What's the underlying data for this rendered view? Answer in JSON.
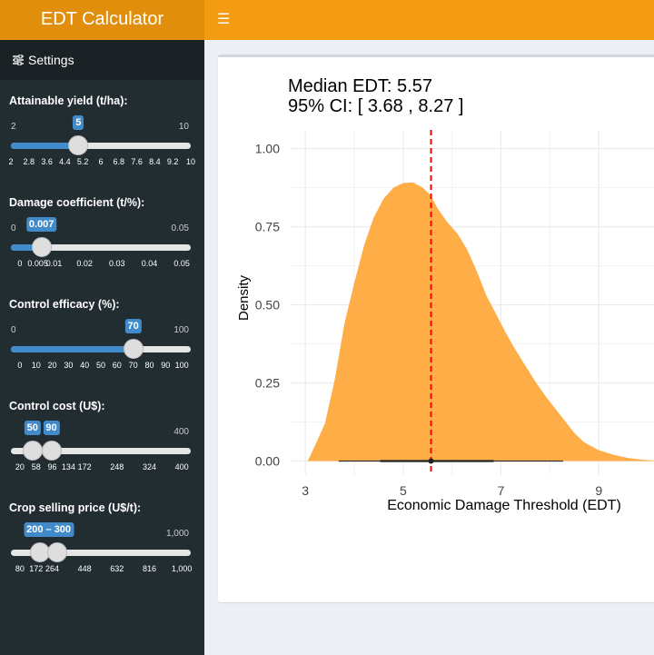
{
  "app": {
    "title": "EDT Calculator",
    "menu_icon": "hamburger-icon"
  },
  "sidebar": {
    "settings_label": "Settings",
    "sliders": [
      {
        "label": "Attainable yield (t/ha):",
        "min": "2",
        "max": "10",
        "value": "5",
        "fill_fraction": 0.375,
        "ticks": [
          "2",
          "2.8",
          "3.6",
          "4.4",
          "5.2",
          "6",
          "6.8",
          "7.6",
          "8.4",
          "9.2",
          "10"
        ]
      },
      {
        "label": "Damage coefficient (t/%):",
        "min": "0",
        "max": "0.05",
        "value": "0.007",
        "fill_fraction": 0.14,
        "ticks": [
          "0",
          "0.005",
          "0.01",
          "0.02",
          "0.03",
          "0.04",
          "0.05"
        ]
      },
      {
        "label": "Control efficacy (%):",
        "min": "0",
        "max": "100",
        "value": "70",
        "fill_fraction": 0.7,
        "ticks": [
          "0",
          "10",
          "20",
          "30",
          "40",
          "50",
          "60",
          "70",
          "80",
          "90",
          "100"
        ]
      },
      {
        "label": "Control cost (U$):",
        "min": "",
        "max": "400",
        "values": [
          "50",
          "90"
        ],
        "range_fractions": [
          0.079,
          0.184
        ],
        "ticks": [
          "20",
          "58",
          "96",
          "134",
          "172",
          "248",
          "324",
          "400"
        ]
      },
      {
        "label": "Crop selling price (U$/t):",
        "min": "",
        "max": "1,000",
        "range_label": "200 – 300",
        "range_fractions": [
          0.13,
          0.239
        ],
        "ticks": [
          "80",
          "172",
          "264",
          "448",
          "632",
          "816",
          "1,000"
        ]
      }
    ]
  },
  "chart_data": {
    "type": "area",
    "title": "Median EDT: 5.57",
    "subtitle": "95% CI: [ 3.68 ,  8.27 ]",
    "xlabel": "Economic Damage Threshold (EDT)",
    "ylabel": "Density",
    "xlim": [
      2.7,
      10.5
    ],
    "ylim": [
      -0.045,
      1.06
    ],
    "x_ticks": [
      3,
      5,
      7,
      9
    ],
    "x_tick_labels": [
      "3",
      "5",
      "7",
      "9"
    ],
    "y_ticks": [
      0,
      0.25,
      0.5,
      0.75,
      1
    ],
    "y_tick_labels": [
      "0.00",
      "0.25",
      "0.50",
      "0.75",
      "1.00"
    ],
    "median": 5.57,
    "ci_95": [
      3.68,
      8.27
    ],
    "interval_50": [
      4.53,
      6.85
    ],
    "fill_color": "#ffad47",
    "median_line_color": "#ff0000",
    "density": {
      "x": [
        3.05,
        3.2,
        3.4,
        3.6,
        3.8,
        4.0,
        4.2,
        4.4,
        4.6,
        4.8,
        5.0,
        5.2,
        5.4,
        5.57,
        5.7,
        5.9,
        6.1,
        6.3,
        6.5,
        6.7,
        6.9,
        7.1,
        7.3,
        7.5,
        7.7,
        7.9,
        8.1,
        8.3,
        8.5,
        8.7,
        9.0,
        9.3,
        9.6,
        9.9,
        10.3
      ],
      "y": [
        0.0,
        0.05,
        0.12,
        0.26,
        0.44,
        0.57,
        0.69,
        0.78,
        0.84,
        0.875,
        0.89,
        0.892,
        0.875,
        0.85,
        0.81,
        0.765,
        0.73,
        0.68,
        0.61,
        0.53,
        0.47,
        0.41,
        0.355,
        0.305,
        0.255,
        0.21,
        0.17,
        0.13,
        0.09,
        0.06,
        0.035,
        0.02,
        0.01,
        0.004,
        0.0
      ]
    }
  }
}
